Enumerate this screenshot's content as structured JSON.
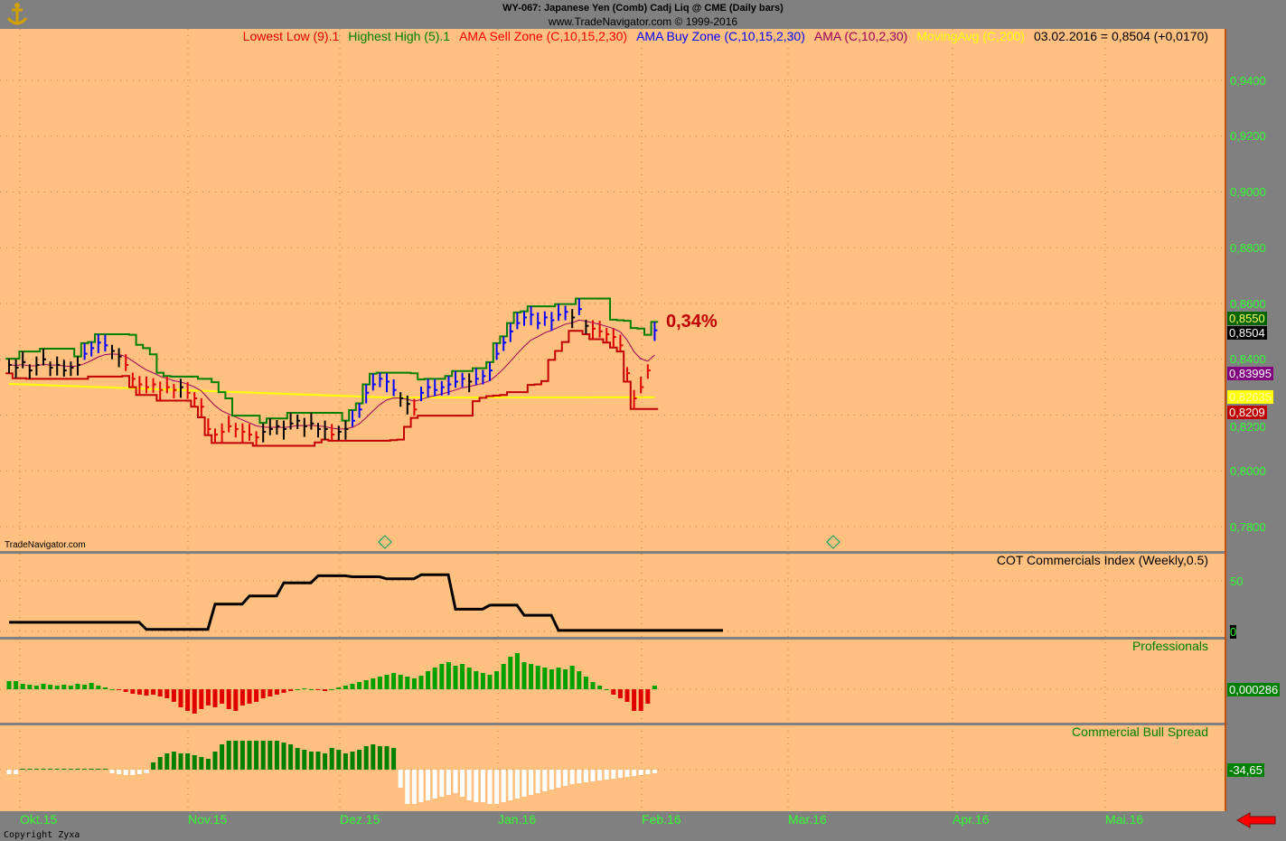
{
  "header": {
    "title": "WY-067:  Japanese Yen (Comb) Cadj Liq @ CME  (Daily bars)",
    "subtitle": "www.TradeNavigator.com © 1999-2016"
  },
  "legend": [
    {
      "label": "Lowest Low (9).1",
      "color": "#e00000"
    },
    {
      "label": "Highest High (5).1",
      "color": "#008000"
    },
    {
      "label": "AMA Sell Zone (C,10,15,2,30)",
      "color": "#ff0000"
    },
    {
      "label": "AMA Buy Zone (C,10,15,2,30)",
      "color": "#0000ff"
    },
    {
      "label": "AMA (C,10,2,30)",
      "color": "#a0005a"
    },
    {
      "label": "MovingAvg (C,200)",
      "color": "#ffff00"
    },
    {
      "label": "03.02.2016 = 0,8504 (+0,0170)",
      "color": "#000000"
    }
  ],
  "watermark": "TradeNavigator.com",
  "annotation": "0,34%",
  "copyright": "Copyright Zyxa",
  "colors": {
    "background": "#ffc080",
    "axis_bg": "#808080",
    "axis_text": "#33ff33",
    "grid": "#c08040"
  },
  "chart_data": [
    {
      "type": "ohlc",
      "title": "WY-067:  Japanese Yen (Comb) Cadj Liq @ CME  (Daily bars)",
      "y_ticks": [
        "0,9400",
        "0,9200",
        "0,9000",
        "0,8800",
        "0,8600",
        "0,8400",
        "0,8200",
        "0,8000",
        "0,7800"
      ],
      "ylim": [
        0.77,
        0.955
      ],
      "x_ticks": [
        "Okt.15",
        "Nov.15",
        "Dez.15",
        "Jan.16",
        "Feb.16",
        "Mar.16",
        "Apr.16",
        "Mai.16"
      ],
      "close": [
        0.838,
        0.837,
        0.839,
        0.836,
        0.838,
        0.84,
        0.837,
        0.838,
        0.836,
        0.837,
        0.838,
        0.842,
        0.844,
        0.846,
        0.845,
        0.843,
        0.841,
        0.838,
        0.833,
        0.831,
        0.83,
        0.831,
        0.829,
        0.83,
        0.829,
        0.83,
        0.828,
        0.826,
        0.823,
        0.815,
        0.813,
        0.814,
        0.816,
        0.815,
        0.814,
        0.813,
        0.812,
        0.814,
        0.815,
        0.816,
        0.815,
        0.817,
        0.818,
        0.816,
        0.817,
        0.815,
        0.815,
        0.813,
        0.814,
        0.815,
        0.818,
        0.822,
        0.828,
        0.831,
        0.833,
        0.832,
        0.829,
        0.826,
        0.824,
        0.822,
        0.828,
        0.83,
        0.829,
        0.83,
        0.831,
        0.832,
        0.833,
        0.832,
        0.833,
        0.834,
        0.836,
        0.842,
        0.846,
        0.85,
        0.853,
        0.855,
        0.856,
        0.853,
        0.855,
        0.854,
        0.856,
        0.857,
        0.855,
        0.858,
        0.852,
        0.851,
        0.85,
        0.849,
        0.848,
        0.845,
        0.835,
        0.826,
        0.83,
        0.836,
        0.8504
      ],
      "ma200": [
        [
          0,
          0.8312
        ],
        [
          55,
          0.8263
        ],
        [
          94,
          0.8264
        ]
      ],
      "value_tags": [
        {
          "label": "0,8550",
          "bg": "#006400",
          "fg": "#ffff66",
          "value": 0.855
        },
        {
          "label": "0,8504",
          "bg": "#000000",
          "fg": "#ffffff",
          "value": 0.8504
        },
        {
          "label": "0,83995",
          "bg": "#800080",
          "fg": "#ffffff",
          "value": 0.83995
        },
        {
          "label": "0,82635",
          "bg": "#ffff00",
          "fg": "#ffffaa",
          "value": 0.82635
        },
        {
          "label": "0,8209",
          "bg": "#c00000",
          "fg": "#ffffff",
          "value": 0.8209
        }
      ]
    },
    {
      "type": "line",
      "title": "COT Commercials Index (Weekly,0.5)",
      "y_ticks": [
        "50",
        "0"
      ],
      "ylim": [
        0,
        60
      ],
      "weekly": [
        9,
        9,
        9,
        9,
        2,
        2,
        27,
        35,
        48,
        55,
        54,
        52,
        56,
        22,
        26,
        16,
        1,
        1,
        1,
        1,
        1
      ],
      "value_tag": "0"
    },
    {
      "type": "bar",
      "title": "Professionals",
      "value_tag": "0,000286",
      "values": [
        9,
        9,
        6,
        5,
        4,
        6,
        5,
        4,
        5,
        4,
        6,
        5,
        7,
        4,
        2,
        0,
        -1,
        -3,
        -5,
        -6,
        -7,
        -6,
        -8,
        -10,
        -14,
        -20,
        -24,
        -27,
        -22,
        -18,
        -20,
        -16,
        -22,
        -24,
        -18,
        -16,
        -14,
        -10,
        -8,
        -6,
        -4,
        -2,
        0,
        1,
        0,
        -1,
        -2,
        0,
        2,
        4,
        6,
        8,
        10,
        12,
        14,
        16,
        18,
        16,
        14,
        12,
        15,
        20,
        24,
        28,
        30,
        26,
        28,
        24,
        20,
        18,
        16,
        20,
        28,
        36,
        40,
        30,
        28,
        26,
        24,
        22,
        24,
        22,
        26,
        20,
        14,
        8,
        4,
        0,
        -6,
        -10,
        -14,
        -24,
        -24,
        -16,
        4
      ]
    },
    {
      "type": "bar",
      "title": "Commercial Bull Spread",
      "value_tag": "-34,65",
      "values": [
        -5,
        -5,
        1,
        1,
        1,
        1,
        1,
        1,
        1,
        1,
        1,
        1,
        1,
        1,
        1,
        -4,
        -5,
        -6,
        -6,
        -5,
        -4,
        8,
        14,
        18,
        20,
        18,
        18,
        16,
        14,
        12,
        20,
        28,
        32,
        32,
        32,
        32,
        32,
        32,
        32,
        32,
        30,
        28,
        24,
        22,
        20,
        20,
        18,
        24,
        22,
        18,
        20,
        22,
        26,
        28,
        26,
        26,
        24,
        -20,
        -38,
        -38,
        -36,
        -34,
        -32,
        -30,
        -28,
        -26,
        -30,
        -34,
        -36,
        -36,
        -38,
        -38,
        -36,
        -34,
        -32,
        -30,
        -28,
        -26,
        -24,
        -22,
        -20,
        -18,
        -16,
        -15,
        -14,
        -13,
        -12,
        -11,
        -10,
        -9,
        -8,
        -7,
        -6,
        -5,
        -4
      ]
    }
  ]
}
